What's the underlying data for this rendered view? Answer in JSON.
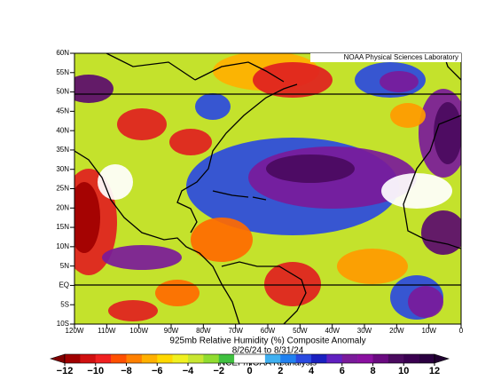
{
  "lab": "NOAA Physical Sciences Laboratory",
  "title": "925mb Relative Humidity (%) Composite Anomaly",
  "dates": "8/26/24  to 8/31/24",
  "credit": "NCEP/NOAA Reanalysis",
  "latitudes": [
    "60N",
    "55N",
    "50N",
    "45N",
    "40N",
    "35N",
    "30N",
    "25N",
    "20N",
    "15N",
    "10N",
    "5N",
    "EQ",
    "5S",
    "10S"
  ],
  "longitudes": [
    "120W",
    "110W",
    "100W",
    "90W",
    "80W",
    "70W",
    "60W",
    "50W",
    "40W",
    "30W",
    "20W",
    "10W",
    "0"
  ],
  "colorbar": {
    "ticks": [
      "−12",
      "−10",
      "−8",
      "−6",
      "−4",
      "−2",
      "0",
      "2",
      "4",
      "6",
      "8",
      "10",
      "12"
    ]
  }
}
